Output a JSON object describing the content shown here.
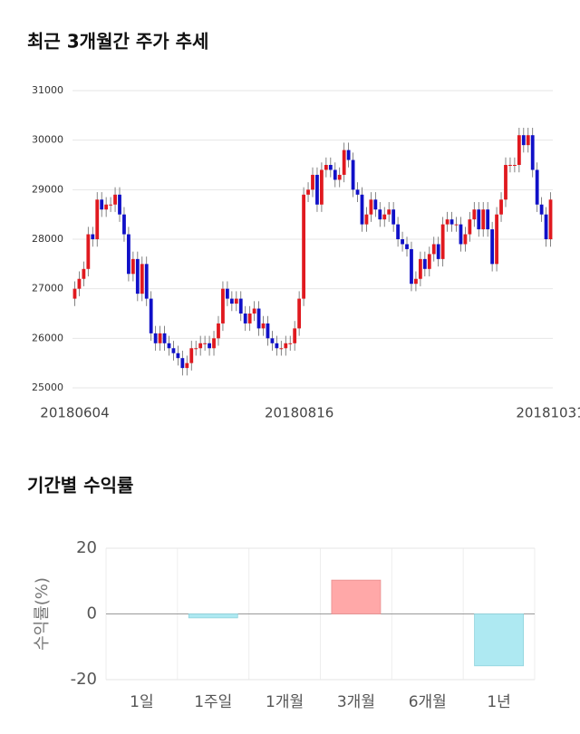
{
  "chart_data": [
    {
      "type": "candlestick",
      "title": "최근 3개월간 주가 추세",
      "categories": [
        "20180604",
        null,
        null,
        null,
        null,
        null,
        null,
        null,
        null,
        null,
        null,
        null,
        null,
        null,
        null,
        null,
        null,
        null,
        null,
        null,
        null,
        null,
        null,
        null,
        null,
        null,
        null,
        null,
        null,
        null,
        null,
        null,
        null,
        null,
        null,
        null,
        null,
        null,
        null,
        null,
        null,
        null,
        null,
        null,
        null,
        null,
        null,
        null,
        null,
        null,
        "20180816",
        null,
        null,
        null,
        null,
        null,
        null,
        null,
        null,
        null,
        null,
        null,
        null,
        null,
        null,
        null,
        null,
        null,
        null,
        null,
        null,
        null,
        null,
        null,
        null,
        null,
        null,
        null,
        null,
        null,
        null,
        null,
        null,
        null,
        null,
        null,
        null,
        null,
        null,
        null,
        null,
        null,
        null,
        null,
        null,
        null,
        null,
        null,
        null,
        null,
        null,
        null,
        null,
        null,
        null,
        null,
        "20181031"
      ],
      "open": [
        26800,
        27000,
        27200,
        27400,
        28100,
        28000,
        28800,
        28600,
        28700,
        28700,
        28900,
        28500,
        28100,
        27300,
        27600,
        26900,
        27500,
        26800,
        26100,
        25900,
        26100,
        25900,
        25800,
        25700,
        25600,
        25400,
        25500,
        25800,
        25800,
        25900,
        25900,
        25800,
        26000,
        26300,
        27000,
        26800,
        26700,
        26800,
        26500,
        26300,
        26500,
        26600,
        26200,
        26300,
        26000,
        25900,
        25800,
        25800,
        25900,
        25900,
        26200,
        26800,
        28900,
        29000,
        29300,
        28700,
        29400,
        29500,
        29400,
        29200,
        29300,
        29800,
        29600,
        29000,
        28900,
        28300,
        28500,
        28800,
        28600,
        28400,
        28500,
        28600,
        28300,
        28000,
        27900,
        27800,
        27100,
        27200,
        27600,
        27400,
        27700,
        27900,
        27600,
        28300,
        28400,
        28300,
        28300,
        27900,
        28100,
        28400,
        28600,
        28200,
        28600,
        28200,
        27500,
        28500,
        28800,
        29500,
        29500,
        29500,
        30100,
        29900,
        30100,
        29400,
        28700,
        28500,
        28000
      ],
      "high": [
        27150,
        27350,
        27550,
        28250,
        28250,
        28950,
        28950,
        28850,
        28850,
        29050,
        29050,
        28650,
        28250,
        27750,
        27750,
        27650,
        27650,
        26950,
        26250,
        26250,
        26250,
        26050,
        25950,
        25850,
        25750,
        25650,
        25950,
        25950,
        26050,
        26050,
        26050,
        26150,
        26450,
        27150,
        27150,
        26950,
        26950,
        26950,
        26650,
        26650,
        26750,
        26750,
        26450,
        26450,
        26150,
        26050,
        25950,
        26050,
        26050,
        26350,
        26950,
        29050,
        29150,
        29450,
        29450,
        29550,
        29650,
        29650,
        29550,
        29450,
        29950,
        29950,
        29750,
        29150,
        29050,
        28650,
        28950,
        28950,
        28750,
        28650,
        28750,
        28750,
        28450,
        28150,
        28050,
        27950,
        27350,
        27750,
        27750,
        27850,
        28050,
        28050,
        28450,
        28550,
        28550,
        28450,
        28450,
        28250,
        28550,
        28750,
        28750,
        28750,
        28750,
        28350,
        28650,
        28950,
        29650,
        29650,
        29650,
        30250,
        30250,
        30250,
        30250,
        29550,
        28850,
        28650,
        28950
      ],
      "low": [
        26650,
        26850,
        27050,
        27250,
        27850,
        27850,
        28450,
        28450,
        28550,
        28550,
        28350,
        27950,
        27150,
        27150,
        26750,
        26750,
        26650,
        25950,
        25750,
        25750,
        25750,
        25650,
        25550,
        25450,
        25250,
        25250,
        25350,
        25650,
        25650,
        25750,
        25650,
        25650,
        25850,
        26150,
        26650,
        26550,
        26550,
        26350,
        26150,
        26150,
        26350,
        26050,
        26050,
        25850,
        25750,
        25650,
        25650,
        25650,
        25750,
        25750,
        26050,
        26650,
        28750,
        28850,
        28550,
        28550,
        29250,
        29250,
        29050,
        29050,
        29150,
        29450,
        28850,
        28750,
        28150,
        28150,
        28350,
        28450,
        28250,
        28250,
        28350,
        28150,
        27850,
        27750,
        27650,
        26950,
        26950,
        27050,
        27250,
        27250,
        27550,
        27450,
        27450,
        28150,
        28150,
        28150,
        27750,
        27750,
        27950,
        28250,
        28050,
        28050,
        28050,
        27350,
        27350,
        28350,
        28650,
        29350,
        29350,
        29350,
        29750,
        29750,
        29250,
        28550,
        28350,
        27850,
        27850
      ],
      "close": [
        27000,
        27200,
        27400,
        28100,
        28000,
        28800,
        28600,
        28700,
        28700,
        28900,
        28500,
        28100,
        27300,
        27600,
        26900,
        27500,
        26800,
        26100,
        25900,
        26100,
        25900,
        25800,
        25700,
        25600,
        25400,
        25500,
        25800,
        25800,
        25900,
        25900,
        25800,
        26000,
        26300,
        27000,
        26800,
        26700,
        26800,
        26500,
        26300,
        26500,
        26600,
        26200,
        26300,
        26000,
        25900,
        25800,
        25800,
        25900,
        25900,
        26200,
        26800,
        28900,
        29000,
        29300,
        28700,
        29400,
        29500,
        29400,
        29200,
        29300,
        29800,
        29600,
        29000,
        28900,
        28300,
        28500,
        28800,
        28600,
        28400,
        28500,
        28600,
        28300,
        28000,
        27900,
        27800,
        27100,
        27200,
        27600,
        27400,
        27700,
        27900,
        27600,
        28300,
        28400,
        28300,
        28300,
        27900,
        28100,
        28400,
        28600,
        28200,
        28600,
        28200,
        27500,
        28500,
        28800,
        29500,
        29500,
        29500,
        30100,
        29900,
        30100,
        29400,
        28700,
        28500,
        28000,
        28800
      ],
      "up_color": "#e0191f",
      "down_color": "#1010c8",
      "ylim": [
        25000,
        31000
      ],
      "yticks": [
        25000,
        26000,
        27000,
        28000,
        29000,
        30000,
        31000
      ],
      "grid": true
    },
    {
      "type": "bar",
      "title": "기간별 수익률",
      "ylabel": "수익률(%)",
      "categories": [
        "1일",
        "1주일",
        "1개월",
        "3개월",
        "6개월",
        "1년"
      ],
      "values": [
        0,
        -1.2,
        0,
        10.3,
        0,
        -15.8
      ],
      "positive_color": "#ffa8a8",
      "negative_color": "#aee9f2",
      "ylim": [
        -20,
        20
      ],
      "yticks": [
        -20,
        0,
        20
      ],
      "grid": true
    }
  ]
}
